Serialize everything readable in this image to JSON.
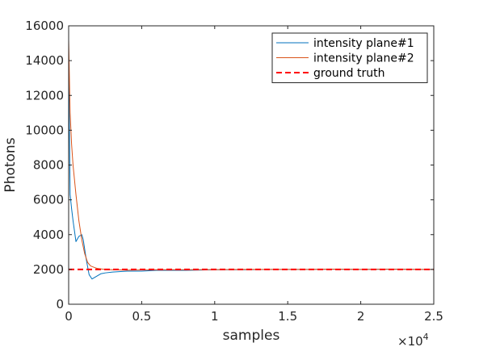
{
  "chart_data": {
    "type": "line",
    "xlabel": "samples",
    "ylabel": "Photons",
    "x_multiplier_base": "×10",
    "x_multiplier_exp": "4",
    "xlim": [
      0,
      2.5
    ],
    "ylim": [
      0,
      16000
    ],
    "x_ticks": [
      "0",
      "0.5",
      "1",
      "1.5",
      "2",
      "2.5"
    ],
    "y_ticks": [
      "0",
      "2000",
      "4000",
      "6000",
      "8000",
      "10000",
      "12000",
      "14000",
      "16000"
    ],
    "legend_position": "top-right",
    "series": [
      {
        "name": "intensity plane#1",
        "color": "#0072BD",
        "dash": "solid",
        "x": [
          0,
          0.01,
          0.02,
          0.03,
          0.05,
          0.07,
          0.09,
          0.1,
          0.12,
          0.14,
          0.16,
          0.18,
          0.2,
          0.22,
          0.25,
          0.3,
          0.4,
          0.5,
          0.6,
          0.8,
          1.0,
          1.2,
          1.4,
          1.6,
          1.8,
          2.0,
          2.2,
          2.4,
          2.5
        ],
        "values": [
          14000,
          6300,
          5500,
          4800,
          3600,
          3900,
          4000,
          3700,
          2600,
          1700,
          1450,
          1550,
          1650,
          1750,
          1800,
          1850,
          1900,
          1900,
          1950,
          1950,
          1980,
          1980,
          2000,
          2000,
          2010,
          2000,
          2020,
          2000,
          2000
        ]
      },
      {
        "name": "intensity plane#2",
        "color": "#D95319",
        "dash": "solid",
        "x": [
          0,
          0.01,
          0.02,
          0.03,
          0.05,
          0.07,
          0.09,
          0.11,
          0.13,
          0.15,
          0.18,
          0.2,
          0.25,
          0.3,
          0.35,
          0.4,
          0.5,
          0.6,
          0.8,
          1.0,
          1.2,
          1.4,
          1.6,
          1.8,
          2.0,
          2.2,
          2.4,
          2.5
        ],
        "values": [
          15200,
          11000,
          9200,
          8000,
          6300,
          4800,
          3700,
          2900,
          2400,
          2200,
          2100,
          2050,
          2000,
          1980,
          1970,
          1960,
          1970,
          1980,
          1980,
          1990,
          2000,
          2000,
          2000,
          2010,
          2000,
          2010,
          2000,
          2000
        ]
      },
      {
        "name": "ground truth",
        "color": "#FF0000",
        "dash": "dashed",
        "x": [
          0,
          2.5
        ],
        "values": [
          2000,
          2000
        ]
      }
    ]
  }
}
